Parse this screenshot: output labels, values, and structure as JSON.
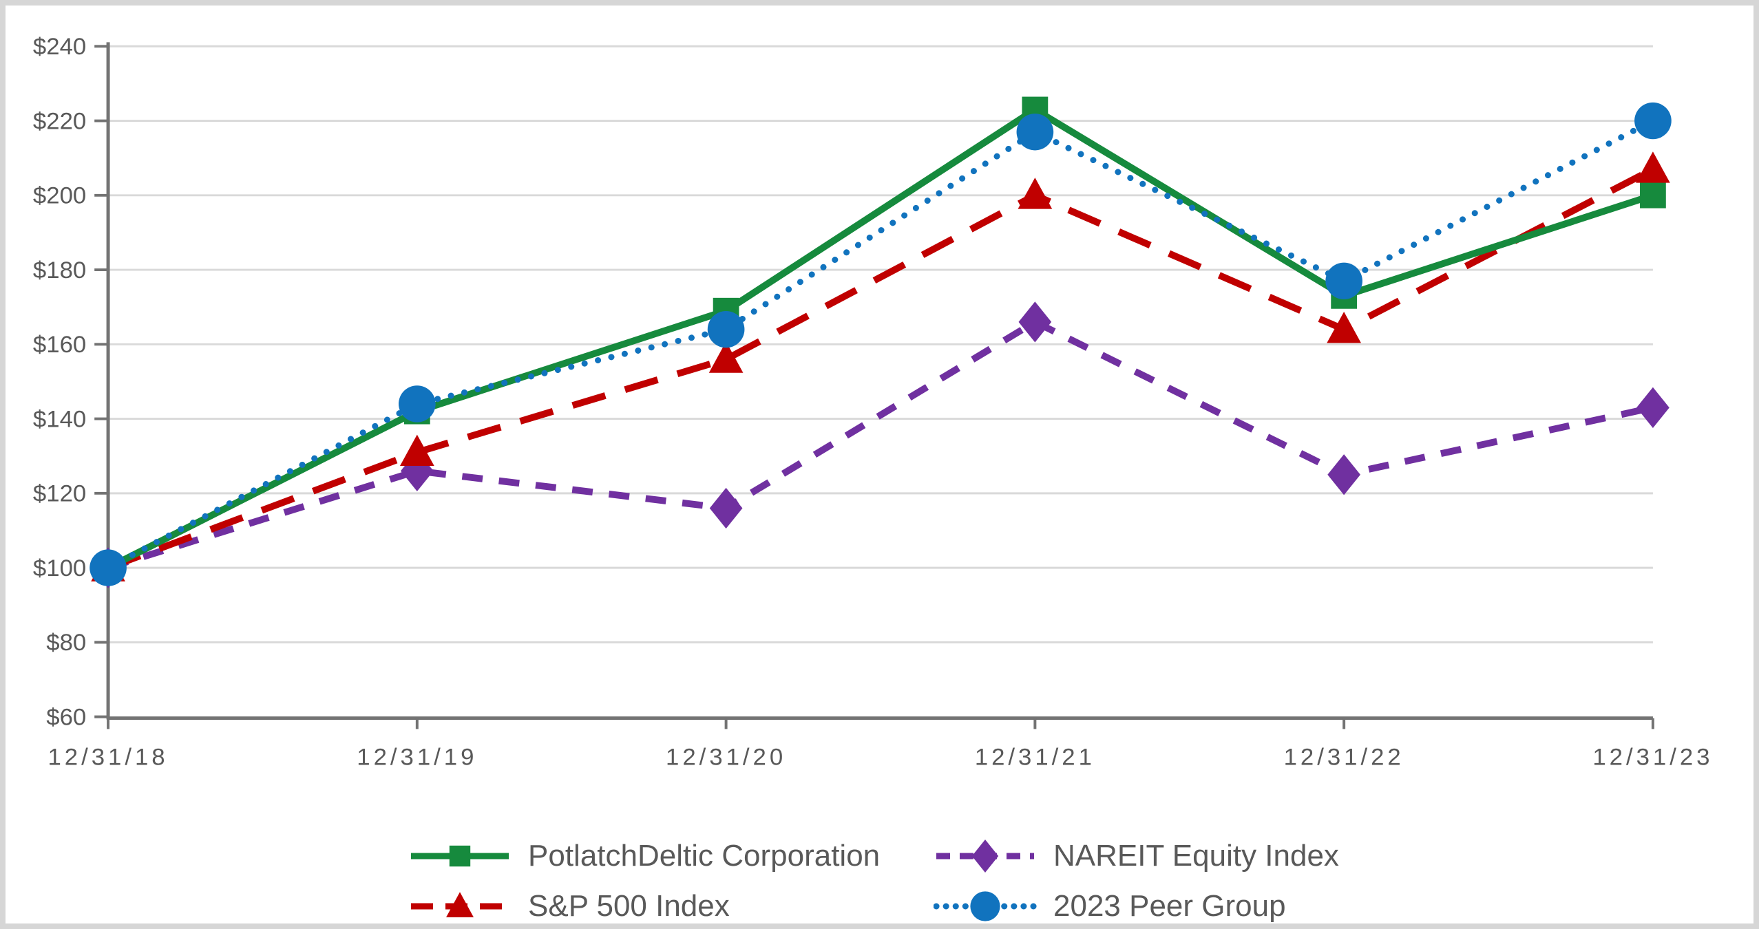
{
  "chart_data": {
    "type": "line",
    "title": "",
    "xlabel": "",
    "ylabel": "",
    "x_categories": [
      "12/31/18",
      "12/31/19",
      "12/31/20",
      "12/31/21",
      "12/31/22",
      "12/31/23"
    ],
    "y_ticks": [
      60,
      80,
      100,
      120,
      140,
      160,
      180,
      200,
      220,
      240
    ],
    "y_tick_labels": [
      "$60",
      "$80",
      "$100",
      "$120",
      "$140",
      "$160",
      "$180",
      "$200",
      "$220",
      "$240"
    ],
    "ylim": [
      60,
      240
    ],
    "grid": true,
    "legend_position": "bottom",
    "series": [
      {
        "name": "PotlatchDeltic Corporation",
        "color": "#168a3d",
        "marker": "square",
        "line": "solid",
        "values": [
          100,
          142,
          169,
          223,
          173,
          200
        ]
      },
      {
        "name": "S&P 500 Index",
        "color": "#c00000",
        "marker": "triangle",
        "line": "long-dash",
        "values": [
          100,
          131,
          156,
          200,
          164,
          207
        ]
      },
      {
        "name": "NAREIT Equity Index",
        "color": "#7030a0",
        "marker": "diamond",
        "line": "dash",
        "values": [
          100,
          126,
          116,
          166,
          125,
          143
        ]
      },
      {
        "name": "2023 Peer Group",
        "color": "#1173be",
        "marker": "circle",
        "line": "dot",
        "values": [
          100,
          144,
          164,
          217,
          177,
          220
        ]
      }
    ],
    "colors": {
      "axis": "#737373",
      "grid": "#d9d9d9",
      "labels": "#595959"
    }
  }
}
